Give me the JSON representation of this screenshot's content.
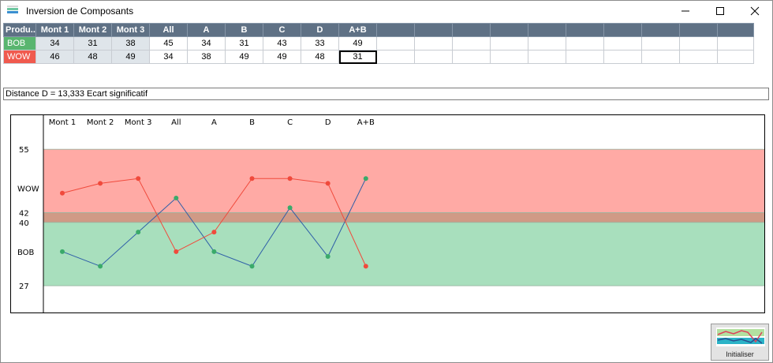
{
  "window": {
    "title": "Inversion de Composants"
  },
  "table": {
    "headers": [
      "Produ...",
      "Mont 1",
      "Mont 2",
      "Mont 3",
      "All",
      "A",
      "B",
      "C",
      "D",
      "A+B"
    ],
    "rows": [
      {
        "name": "BOB",
        "values": [
          "34",
          "31",
          "38",
          "45",
          "34",
          "31",
          "43",
          "33",
          "49"
        ]
      },
      {
        "name": "WOW",
        "values": [
          "46",
          "48",
          "49",
          "34",
          "38",
          "49",
          "49",
          "48",
          "31"
        ]
      }
    ]
  },
  "status_text": "Distance D = 13,333 Ecart significatif",
  "chart_data": {
    "type": "line",
    "categories": [
      "Mont 1",
      "Mont 2",
      "Mont 3",
      "All",
      "A",
      "B",
      "C",
      "D",
      "A+B"
    ],
    "series": [
      {
        "name": "BOB",
        "values": [
          34,
          31,
          38,
          45,
          34,
          31,
          43,
          33,
          49
        ],
        "color": "#2f5fa8",
        "marker": "#3aaa6a"
      },
      {
        "name": "WOW",
        "values": [
          46,
          48,
          49,
          34,
          38,
          49,
          49,
          48,
          31
        ],
        "color": "#f04a3c",
        "marker": "#f04a3c"
      }
    ],
    "y_ticks": [
      "55",
      "42",
      "40",
      "27"
    ],
    "y_tick_values": [
      55,
      42,
      40,
      27
    ],
    "band_labels": [
      "WOW",
      "BOB"
    ],
    "ylim": [
      21.5,
      62
    ],
    "bands": [
      {
        "name": "WOW",
        "from": 40,
        "to": 55,
        "color": "#ffaaa5"
      },
      {
        "name": "BOB",
        "from": 27,
        "to": 42,
        "color": "#a8dfbd"
      },
      {
        "name": "overlap",
        "from": 40,
        "to": 42,
        "color": "#d09a86"
      }
    ]
  },
  "buttons": {
    "init_label": "Initialiser"
  }
}
